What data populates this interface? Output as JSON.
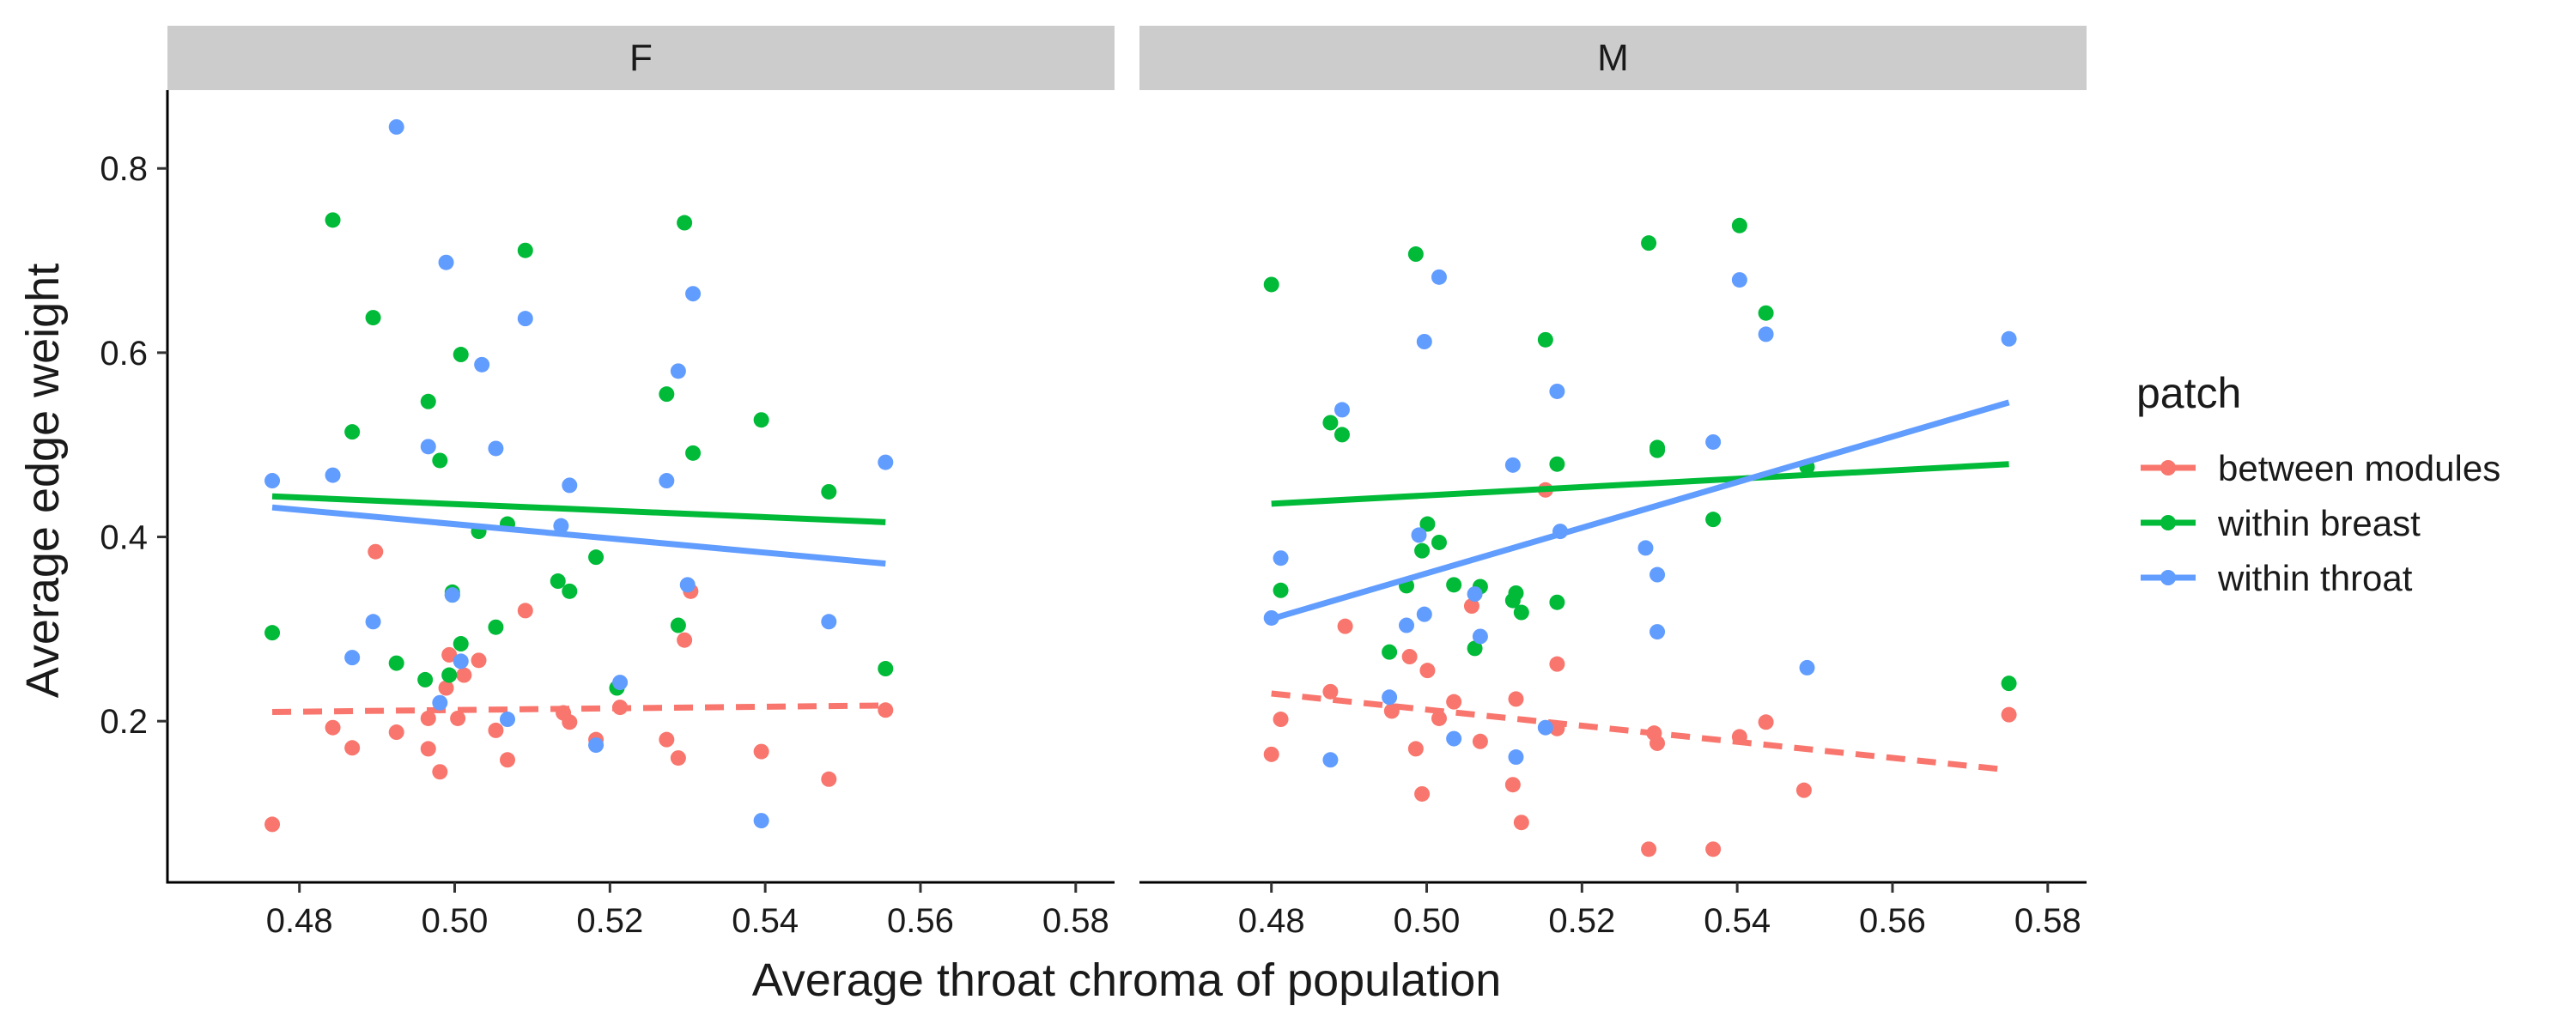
{
  "chart_data": {
    "type": "scatter",
    "facet_labels": [
      "F",
      "M"
    ],
    "xlabel": "Average throat chroma of population",
    "ylabel": "Average edge weight",
    "xlim": [
      0.463,
      0.585
    ],
    "ylim": [
      0.025,
      0.885
    ],
    "x_ticks": [
      0.48,
      0.5,
      0.52,
      0.54,
      0.56,
      0.58
    ],
    "x_tick_labels": [
      "0.48",
      "0.50",
      "0.52",
      "0.54",
      "0.56",
      "0.58"
    ],
    "y_ticks": [
      0.2,
      0.4,
      0.6,
      0.8
    ],
    "y_tick_labels": [
      "0.2",
      "0.4",
      "0.6",
      "0.8"
    ],
    "grid": false,
    "legend": {
      "title": "patch",
      "position": "right",
      "entries": [
        "between modules",
        "within breast",
        "within throat"
      ]
    },
    "series": [
      {
        "name": "between modules",
        "color": "#F8766D",
        "line_style": "dashed",
        "panels": [
          {
            "facet": "F",
            "fit": [
              [
                0.4765,
                0.21
              ],
              [
                0.5555,
                0.217
              ]
            ],
            "points": [
              [
                0.4765,
                0.088
              ],
              [
                0.4843,
                0.193
              ],
              [
                0.4868,
                0.171
              ],
              [
                0.4898,
                0.384
              ],
              [
                0.4925,
                0.188
              ],
              [
                0.4966,
                0.17
              ],
              [
                0.4966,
                0.203
              ],
              [
                0.4981,
                0.145
              ],
              [
                0.4989,
                0.236
              ],
              [
                0.4993,
                0.272
              ],
              [
                0.5004,
                0.203
              ],
              [
                0.5012,
                0.25
              ],
              [
                0.5031,
                0.266
              ],
              [
                0.5053,
                0.19
              ],
              [
                0.5068,
                0.158
              ],
              [
                0.5091,
                0.32
              ],
              [
                0.514,
                0.209
              ],
              [
                0.5148,
                0.199
              ],
              [
                0.5182,
                0.18
              ],
              [
                0.5213,
                0.215
              ],
              [
                0.5273,
                0.18
              ],
              [
                0.5288,
                0.16
              ],
              [
                0.5296,
                0.288
              ],
              [
                0.5304,
                0.341
              ],
              [
                0.5395,
                0.167
              ],
              [
                0.5482,
                0.137
              ],
              [
                0.5555,
                0.212
              ]
            ]
          },
          {
            "facet": "M",
            "fit": [
              [
                0.48,
                0.23
              ],
              [
                0.575,
                0.147
              ]
            ],
            "points": [
              [
                0.48,
                0.164
              ],
              [
                0.4812,
                0.202
              ],
              [
                0.4876,
                0.232
              ],
              [
                0.4895,
                0.303
              ],
              [
                0.4955,
                0.211
              ],
              [
                0.4978,
                0.27
              ],
              [
                0.4986,
                0.17
              ],
              [
                0.4994,
                0.121
              ],
              [
                0.5001,
                0.255
              ],
              [
                0.5016,
                0.203
              ],
              [
                0.5035,
                0.221
              ],
              [
                0.5058,
                0.325
              ],
              [
                0.5069,
                0.178
              ],
              [
                0.5111,
                0.131
              ],
              [
                0.5115,
                0.224
              ],
              [
                0.5122,
                0.09
              ],
              [
                0.5153,
                0.451
              ],
              [
                0.5168,
                0.192
              ],
              [
                0.5168,
                0.262
              ],
              [
                0.5286,
                0.061
              ],
              [
                0.5293,
                0.187
              ],
              [
                0.5297,
                0.176
              ],
              [
                0.5369,
                0.061
              ],
              [
                0.5403,
                0.183
              ],
              [
                0.5437,
                0.199
              ],
              [
                0.5486,
                0.125
              ],
              [
                0.575,
                0.207
              ]
            ]
          }
        ]
      },
      {
        "name": "within breast",
        "color": "#00BA38",
        "line_style": "solid",
        "panels": [
          {
            "facet": "F",
            "fit": [
              [
                0.4765,
                0.444
              ],
              [
                0.5555,
                0.416
              ]
            ],
            "points": [
              [
                0.4765,
                0.296
              ],
              [
                0.4843,
                0.744
              ],
              [
                0.4868,
                0.514
              ],
              [
                0.4895,
                0.638
              ],
              [
                0.4925,
                0.263
              ],
              [
                0.4962,
                0.245
              ],
              [
                0.4966,
                0.547
              ],
              [
                0.4981,
                0.483
              ],
              [
                0.4993,
                0.25
              ],
              [
                0.4997,
                0.34
              ],
              [
                0.4997,
                0.337
              ],
              [
                0.5008,
                0.284
              ],
              [
                0.5008,
                0.598
              ],
              [
                0.5031,
                0.406
              ],
              [
                0.5053,
                0.302
              ],
              [
                0.5068,
                0.414
              ],
              [
                0.5091,
                0.711
              ],
              [
                0.5133,
                0.352
              ],
              [
                0.5148,
                0.341
              ],
              [
                0.5182,
                0.378
              ],
              [
                0.5209,
                0.236
              ],
              [
                0.5273,
                0.555
              ],
              [
                0.5288,
                0.304
              ],
              [
                0.5296,
                0.741
              ],
              [
                0.5307,
                0.491
              ],
              [
                0.5395,
                0.527
              ],
              [
                0.5482,
                0.449
              ],
              [
                0.5555,
                0.257
              ]
            ]
          },
          {
            "facet": "M",
            "fit": [
              [
                0.48,
                0.436
              ],
              [
                0.575,
                0.479
              ]
            ],
            "points": [
              [
                0.48,
                0.674
              ],
              [
                0.4812,
                0.342
              ],
              [
                0.4876,
                0.524
              ],
              [
                0.4891,
                0.511
              ],
              [
                0.4952,
                0.275
              ],
              [
                0.4974,
                0.347
              ],
              [
                0.4986,
                0.707
              ],
              [
                0.4994,
                0.385
              ],
              [
                0.5001,
                0.414
              ],
              [
                0.5016,
                0.394
              ],
              [
                0.5035,
                0.348
              ],
              [
                0.5062,
                0.279
              ],
              [
                0.5069,
                0.346
              ],
              [
                0.5111,
                0.331
              ],
              [
                0.5115,
                0.339
              ],
              [
                0.5122,
                0.318
              ],
              [
                0.5153,
                0.614
              ],
              [
                0.5168,
                0.479
              ],
              [
                0.5168,
                0.329
              ],
              [
                0.5286,
                0.719
              ],
              [
                0.5297,
                0.494
              ],
              [
                0.5297,
                0.497
              ],
              [
                0.5369,
                0.419
              ],
              [
                0.5403,
                0.738
              ],
              [
                0.5437,
                0.643
              ],
              [
                0.549,
                0.476
              ],
              [
                0.575,
                0.241
              ]
            ]
          }
        ]
      },
      {
        "name": "within throat",
        "color": "#619CFF",
        "line_style": "solid",
        "panels": [
          {
            "facet": "F",
            "fit": [
              [
                0.4765,
                0.432
              ],
              [
                0.5555,
                0.371
              ]
            ],
            "points": [
              [
                0.4765,
                0.461
              ],
              [
                0.4843,
                0.467
              ],
              [
                0.4868,
                0.269
              ],
              [
                0.4895,
                0.308
              ],
              [
                0.4925,
                0.845
              ],
              [
                0.4966,
                0.498
              ],
              [
                0.4981,
                0.22
              ],
              [
                0.4989,
                0.698
              ],
              [
                0.4997,
                0.337
              ],
              [
                0.5008,
                0.265
              ],
              [
                0.5035,
                0.587
              ],
              [
                0.5053,
                0.496
              ],
              [
                0.5068,
                0.202
              ],
              [
                0.5091,
                0.637
              ],
              [
                0.5137,
                0.412
              ],
              [
                0.5148,
                0.456
              ],
              [
                0.5182,
                0.174
              ],
              [
                0.5213,
                0.242
              ],
              [
                0.5273,
                0.461
              ],
              [
                0.5288,
                0.58
              ],
              [
                0.53,
                0.348
              ],
              [
                0.5307,
                0.664
              ],
              [
                0.5395,
                0.092
              ],
              [
                0.5482,
                0.308
              ],
              [
                0.5555,
                0.481
              ]
            ]
          },
          {
            "facet": "M",
            "fit": [
              [
                0.48,
                0.311
              ],
              [
                0.575,
                0.546
              ]
            ],
            "points": [
              [
                0.48,
                0.312
              ],
              [
                0.4812,
                0.377
              ],
              [
                0.4876,
                0.158
              ],
              [
                0.4891,
                0.538
              ],
              [
                0.4952,
                0.226
              ],
              [
                0.4974,
                0.304
              ],
              [
                0.499,
                0.402
              ],
              [
                0.4997,
                0.316
              ],
              [
                0.4997,
                0.612
              ],
              [
                0.5016,
                0.682
              ],
              [
                0.5035,
                0.181
              ],
              [
                0.5062,
                0.338
              ],
              [
                0.5069,
                0.292
              ],
              [
                0.5111,
                0.478
              ],
              [
                0.5115,
                0.161
              ],
              [
                0.5153,
                0.193
              ],
              [
                0.5168,
                0.558
              ],
              [
                0.5172,
                0.406
              ],
              [
                0.5282,
                0.388
              ],
              [
                0.5297,
                0.359
              ],
              [
                0.5297,
                0.297
              ],
              [
                0.5369,
                0.503
              ],
              [
                0.5403,
                0.679
              ],
              [
                0.5437,
                0.62
              ],
              [
                0.549,
                0.258
              ],
              [
                0.575,
                0.615
              ]
            ]
          }
        ]
      }
    ]
  }
}
